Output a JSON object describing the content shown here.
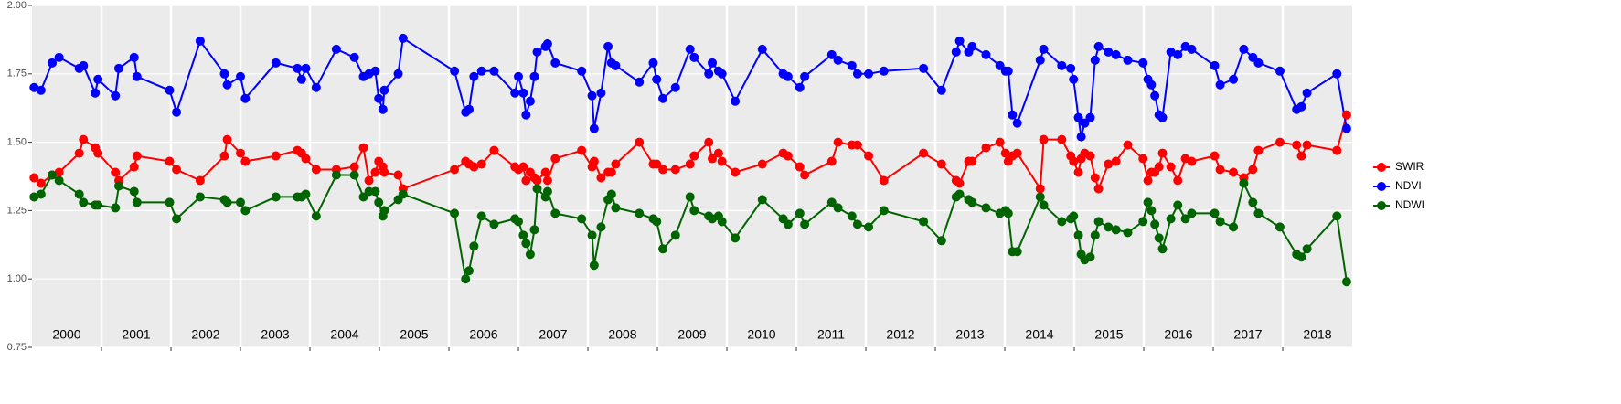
{
  "chart_data": {
    "type": "line",
    "x": [
      2000.03,
      2000.13,
      2000.29,
      2000.39,
      2000.68,
      2000.74,
      2000.91,
      2000.95,
      2001.2,
      2001.25,
      2001.47,
      2001.51,
      2001.98,
      2002.08,
      2002.42,
      2002.77,
      2002.81,
      2003.0,
      2003.07,
      2003.51,
      2003.82,
      2003.88,
      2003.94,
      2004.09,
      2004.38,
      2004.64,
      2004.77,
      2004.85,
      2004.94,
      2004.99,
      2005.05,
      2005.07,
      2005.27,
      2005.34,
      2006.08,
      2006.24,
      2006.29,
      2006.36,
      2006.47,
      2006.65,
      2006.95,
      2007.0,
      2007.07,
      2007.11,
      2007.17,
      2007.23,
      2007.27,
      2007.39,
      2007.42,
      2007.53,
      2007.91,
      2008.06,
      2008.09,
      2008.19,
      2008.29,
      2008.34,
      2008.4,
      2008.74,
      2008.94,
      2008.99,
      2009.08,
      2009.26,
      2009.47,
      2009.53,
      2009.74,
      2009.79,
      2009.88,
      2009.93,
      2010.12,
      2010.51,
      2010.81,
      2010.88,
      2011.05,
      2011.12,
      2011.51,
      2011.6,
      2011.8,
      2011.88,
      2012.04,
      2012.26,
      2012.83,
      2013.09,
      2013.3,
      2013.35,
      2013.48,
      2013.53,
      2013.73,
      2013.93,
      2014.01,
      2014.05,
      2014.11,
      2014.18,
      2014.51,
      2014.56,
      2014.82,
      2014.95,
      2014.99,
      2015.06,
      2015.1,
      2015.15,
      2015.23,
      2015.3,
      2015.35,
      2015.49,
      2015.6,
      2015.77,
      2015.99,
      2016.06,
      2016.11,
      2016.16,
      2016.22,
      2016.27,
      2016.39,
      2016.49,
      2016.6,
      2016.69,
      2017.02,
      2017.1,
      2017.29,
      2017.44,
      2017.57,
      2017.65,
      2017.96,
      2018.2,
      2018.27,
      2018.35,
      2018.78,
      2018.92
    ],
    "series": [
      {
        "name": "SWIR",
        "color": "#ff0000",
        "values": [
          1.37,
          1.35,
          1.38,
          1.39,
          1.46,
          1.51,
          1.48,
          1.46,
          1.39,
          1.36,
          1.41,
          1.45,
          1.43,
          1.4,
          1.36,
          1.45,
          1.51,
          1.46,
          1.43,
          1.45,
          1.47,
          1.46,
          1.44,
          1.4,
          1.4,
          1.41,
          1.48,
          1.36,
          1.39,
          1.43,
          1.41,
          1.39,
          1.38,
          1.33,
          1.4,
          1.43,
          1.42,
          1.41,
          1.42,
          1.47,
          1.41,
          1.4,
          1.41,
          1.36,
          1.39,
          1.37,
          1.36,
          1.39,
          1.36,
          1.44,
          1.47,
          1.41,
          1.43,
          1.37,
          1.39,
          1.39,
          1.42,
          1.5,
          1.42,
          1.42,
          1.4,
          1.4,
          1.42,
          1.45,
          1.5,
          1.44,
          1.46,
          1.43,
          1.39,
          1.42,
          1.46,
          1.45,
          1.41,
          1.38,
          1.43,
          1.5,
          1.49,
          1.49,
          1.45,
          1.36,
          1.46,
          1.42,
          1.36,
          1.35,
          1.43,
          1.43,
          1.48,
          1.5,
          1.46,
          1.43,
          1.45,
          1.46,
          1.33,
          1.51,
          1.51,
          1.45,
          1.43,
          1.39,
          1.44,
          1.46,
          1.45,
          1.37,
          1.33,
          1.42,
          1.43,
          1.49,
          1.44,
          1.36,
          1.39,
          1.39,
          1.41,
          1.46,
          1.41,
          1.36,
          1.44,
          1.43,
          1.45,
          1.4,
          1.39,
          1.37,
          1.4,
          1.47,
          1.5,
          1.49,
          1.45,
          1.49,
          1.47,
          1.6
        ]
      },
      {
        "name": "NDVI",
        "color": "#0000ff",
        "values": [
          1.7,
          1.69,
          1.79,
          1.81,
          1.77,
          1.78,
          1.68,
          1.73,
          1.67,
          1.77,
          1.81,
          1.74,
          1.69,
          1.61,
          1.87,
          1.75,
          1.71,
          1.74,
          1.66,
          1.79,
          1.77,
          1.73,
          1.77,
          1.7,
          1.84,
          1.81,
          1.74,
          1.75,
          1.76,
          1.66,
          1.62,
          1.69,
          1.75,
          1.88,
          1.76,
          1.61,
          1.62,
          1.74,
          1.76,
          1.76,
          1.68,
          1.74,
          1.68,
          1.6,
          1.65,
          1.74,
          1.83,
          1.85,
          1.86,
          1.79,
          1.76,
          1.67,
          1.55,
          1.68,
          1.85,
          1.79,
          1.78,
          1.72,
          1.79,
          1.73,
          1.66,
          1.7,
          1.84,
          1.81,
          1.75,
          1.79,
          1.76,
          1.75,
          1.65,
          1.84,
          1.75,
          1.74,
          1.7,
          1.74,
          1.82,
          1.8,
          1.78,
          1.75,
          1.75,
          1.76,
          1.77,
          1.69,
          1.83,
          1.87,
          1.83,
          1.85,
          1.82,
          1.78,
          1.76,
          1.76,
          1.6,
          1.57,
          1.8,
          1.84,
          1.78,
          1.77,
          1.73,
          1.59,
          1.52,
          1.57,
          1.59,
          1.8,
          1.85,
          1.83,
          1.82,
          1.8,
          1.79,
          1.73,
          1.71,
          1.67,
          1.6,
          1.59,
          1.83,
          1.82,
          1.85,
          1.84,
          1.78,
          1.71,
          1.73,
          1.84,
          1.81,
          1.79,
          1.76,
          1.62,
          1.63,
          1.68,
          1.75,
          1.55
        ]
      },
      {
        "name": "NDWI",
        "color": "#006400",
        "values": [
          1.3,
          1.31,
          1.38,
          1.36,
          1.31,
          1.28,
          1.27,
          1.27,
          1.26,
          1.34,
          1.32,
          1.28,
          1.28,
          1.22,
          1.3,
          1.29,
          1.28,
          1.28,
          1.25,
          1.3,
          1.3,
          1.3,
          1.31,
          1.23,
          1.38,
          1.38,
          1.3,
          1.32,
          1.32,
          1.28,
          1.23,
          1.25,
          1.29,
          1.31,
          1.24,
          1.0,
          1.03,
          1.12,
          1.23,
          1.2,
          1.22,
          1.21,
          1.16,
          1.13,
          1.09,
          1.18,
          1.33,
          1.3,
          1.32,
          1.24,
          1.22,
          1.16,
          1.05,
          1.19,
          1.29,
          1.31,
          1.26,
          1.24,
          1.22,
          1.21,
          1.11,
          1.16,
          1.3,
          1.25,
          1.23,
          1.22,
          1.23,
          1.21,
          1.15,
          1.29,
          1.22,
          1.2,
          1.24,
          1.2,
          1.28,
          1.26,
          1.23,
          1.2,
          1.19,
          1.25,
          1.21,
          1.14,
          1.3,
          1.31,
          1.29,
          1.28,
          1.26,
          1.24,
          1.25,
          1.24,
          1.1,
          1.1,
          1.3,
          1.27,
          1.21,
          1.22,
          1.23,
          1.16,
          1.09,
          1.07,
          1.08,
          1.16,
          1.21,
          1.19,
          1.18,
          1.17,
          1.21,
          1.28,
          1.25,
          1.2,
          1.15,
          1.11,
          1.22,
          1.27,
          1.22,
          1.24,
          1.24,
          1.21,
          1.19,
          1.35,
          1.28,
          1.24,
          1.19,
          1.09,
          1.08,
          1.11,
          1.23,
          0.99
        ]
      }
    ],
    "xlim": [
      2000,
      2019
    ],
    "xticks": [
      {
        "value": 2000.5,
        "label": "2000"
      },
      {
        "value": 2001.5,
        "label": "2001"
      },
      {
        "value": 2002.5,
        "label": "2002"
      },
      {
        "value": 2003.5,
        "label": "2003"
      },
      {
        "value": 2004.5,
        "label": "2004"
      },
      {
        "value": 2005.5,
        "label": "2005"
      },
      {
        "value": 2006.5,
        "label": "2006"
      },
      {
        "value": 2007.5,
        "label": "2007"
      },
      {
        "value": 2008.5,
        "label": "2008"
      },
      {
        "value": 2009.5,
        "label": "2009"
      },
      {
        "value": 2010.5,
        "label": "2010"
      },
      {
        "value": 2011.5,
        "label": "2011"
      },
      {
        "value": 2012.5,
        "label": "2012"
      },
      {
        "value": 2013.5,
        "label": "2013"
      },
      {
        "value": 2014.5,
        "label": "2014"
      },
      {
        "value": 2015.5,
        "label": "2015"
      },
      {
        "value": 2016.5,
        "label": "2016"
      },
      {
        "value": 2017.5,
        "label": "2017"
      },
      {
        "value": 2018.5,
        "label": "2018"
      }
    ],
    "xgrid": [
      2001,
      2002,
      2003,
      2004,
      2005,
      2006,
      2007,
      2008,
      2009,
      2010,
      2011,
      2012,
      2013,
      2014,
      2015,
      2016,
      2017,
      2018
    ],
    "ylim": [
      0.75,
      2.0
    ],
    "yticks": [
      0.75,
      {
        "value": 1.0,
        "label": "1.00"
      },
      1.25,
      {
        "value": 1.5,
        "label": "1.50"
      },
      1.75,
      {
        "value": 2.0,
        "label": "2.00"
      }
    ],
    "grid": true,
    "legend": "right"
  }
}
